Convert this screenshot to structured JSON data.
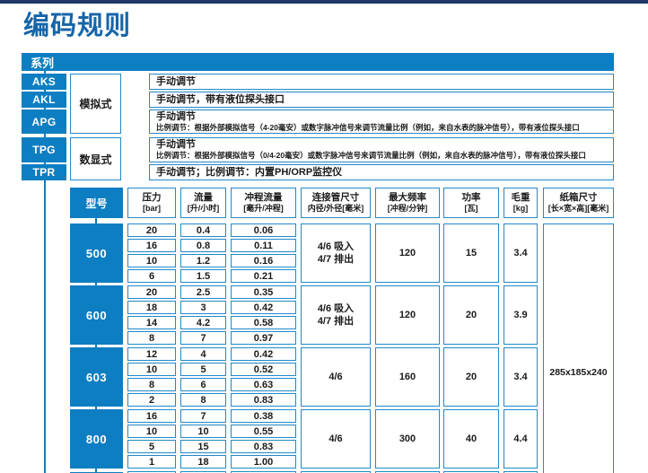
{
  "page": {
    "title": "编码规则"
  },
  "colors": {
    "accent_blue": "#0d7ec2",
    "border_blue": "#2189c9",
    "navy_bar": "#1f3864",
    "title_blue": "#1565a8",
    "text_dark": "#1a1a1a"
  },
  "series_table": {
    "header": "系列",
    "groups": [
      {
        "type_label": "模拟式",
        "rows": [
          {
            "code": "AKS",
            "desc_lines": [
              "手动调节"
            ]
          },
          {
            "code": "AKL",
            "desc_lines": [
              "手动调节，带有液位探头接口"
            ]
          },
          {
            "code": "APG",
            "desc_lines": [
              "手动调节",
              "比例调节：根据外部模拟信号（4-20毫安）或数字脉冲信号来调节流量比例（例如，来自水表的脉冲信号），带有液位探头接口"
            ]
          }
        ]
      },
      {
        "type_label": "数显式",
        "rows": [
          {
            "code": "TPG",
            "desc_lines": [
              "手动调节",
              "比例调节：根据外部模拟信号（0/4-20毫安）或数字脉冲信号来调节流量比例（例如，来自水表的脉冲信号），带有液位探头接口"
            ]
          },
          {
            "code": "TPR",
            "desc_lines": [
              "手动调节；比例调节：内置PH/ORP监控仪"
            ]
          }
        ]
      }
    ]
  },
  "spec_table": {
    "headers": {
      "model": "型号",
      "pressure": [
        "压力",
        "[bar]"
      ],
      "flow": [
        "流量",
        "[升/小时]"
      ],
      "stroke": [
        "冲程流量",
        "[毫升/冲程]"
      ],
      "connector": [
        "连接管尺寸",
        "内径/外径[毫米]"
      ],
      "max_freq": [
        "最大频率",
        "[冲程/分钟]"
      ],
      "power": [
        "功率",
        "[瓦]"
      ],
      "weight": [
        "毛重",
        "[kg]"
      ],
      "carton": [
        "纸箱尺寸",
        "[长×宽×高][毫米]"
      ]
    },
    "groups": [
      {
        "model": "500",
        "rows": [
          [
            "20",
            "0.4",
            "0.06"
          ],
          [
            "16",
            "0.8",
            "0.11"
          ],
          [
            "10",
            "1.2",
            "0.16"
          ],
          [
            "6",
            "1.5",
            "0.21"
          ]
        ],
        "connector": "4/6 吸入\n4/7 排出",
        "max_freq": "120",
        "power": "15",
        "weight": "3.4"
      },
      {
        "model": "600",
        "rows": [
          [
            "20",
            "2.5",
            "0.35"
          ],
          [
            "18",
            "3",
            "0.42"
          ],
          [
            "14",
            "4.2",
            "0.58"
          ],
          [
            "8",
            "7",
            "0.97"
          ]
        ],
        "connector": "4/6 吸入\n4/7 排出",
        "max_freq": "120",
        "power": "20",
        "weight": "3.9"
      },
      {
        "model": "603",
        "rows": [
          [
            "12",
            "4",
            "0.42"
          ],
          [
            "10",
            "5",
            "0.52"
          ],
          [
            "8",
            "6",
            "0.63"
          ],
          [
            "2",
            "8",
            "0.83"
          ]
        ],
        "connector": "4/6",
        "max_freq": "160",
        "power": "20",
        "weight": "3.4"
      },
      {
        "model": "800",
        "rows": [
          [
            "16",
            "7",
            "0.38"
          ],
          [
            "10",
            "10",
            "0.55"
          ],
          [
            "5",
            "15",
            "0.83"
          ],
          [
            "1",
            "18",
            "1.00"
          ]
        ],
        "connector": "4/6",
        "max_freq": "300",
        "power": "40",
        "weight": "4.4"
      }
    ],
    "carton_size": "285x185x240"
  }
}
